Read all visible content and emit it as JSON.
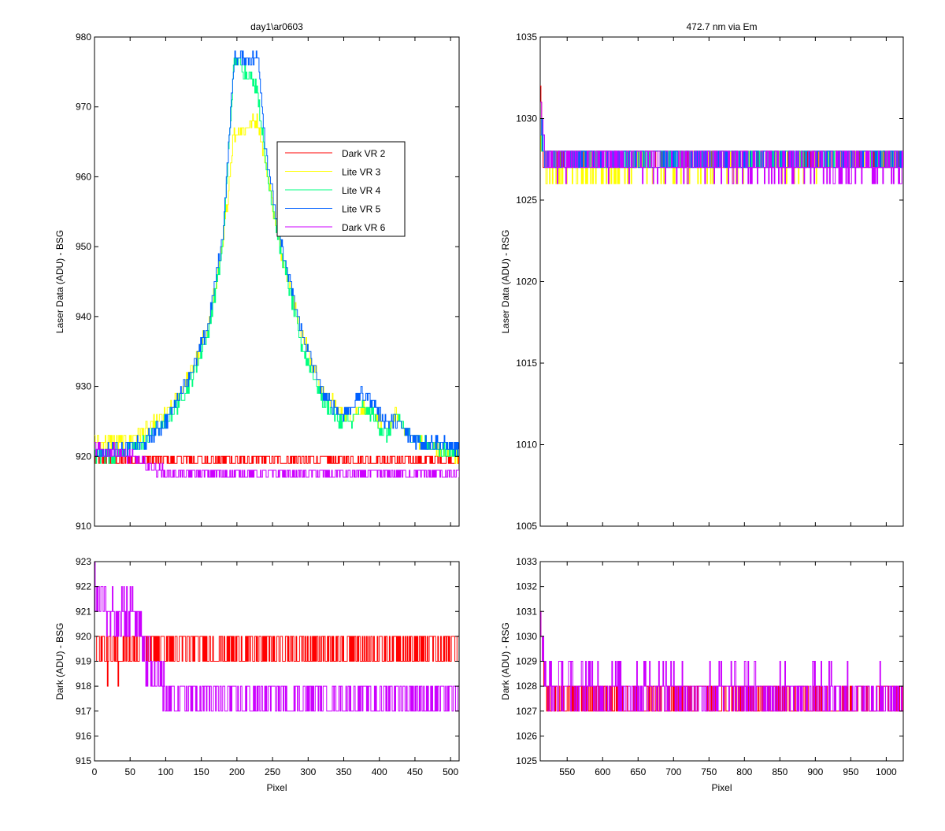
{
  "figure": {
    "left_title": "day1\\ar0603",
    "right_title": "472.7 nm via Em"
  },
  "legend": {
    "entries": [
      {
        "label": "Dark VR 2",
        "color": "#ff0000"
      },
      {
        "label": "Lite VR 3",
        "color": "#ffff00"
      },
      {
        "label": "Lite VR 4",
        "color": "#00ff80"
      },
      {
        "label": "Lite VR 5",
        "color": "#0060ff"
      },
      {
        "label": "Dark VR 6",
        "color": "#cc00ff"
      }
    ]
  },
  "chart_data": [
    {
      "id": "bsg-laser",
      "type": "line",
      "title": "day1\\ar0603",
      "xlabel": "",
      "ylabel": "Laser Data (ADU) - BSG",
      "xlim": [
        0,
        512
      ],
      "ylim": [
        910,
        980
      ],
      "xticks": [
        0,
        50,
        100,
        150,
        200,
        250,
        300,
        350,
        400,
        450,
        500
      ],
      "yticks": [
        910,
        920,
        930,
        940,
        950,
        960,
        970,
        980
      ],
      "x_tick_labels_shown": false,
      "legend": "inside, upper-middle",
      "series": [
        {
          "name": "Dark VR 2",
          "color": "#ff0000",
          "noise": 1,
          "x": [
            0,
            512
          ],
          "y": [
            919.5,
            919.5
          ]
        },
        {
          "name": "Lite VR 3",
          "color": "#ffff00",
          "noise": 1,
          "x": [
            0,
            40,
            70,
            100,
            120,
            140,
            160,
            180,
            195,
            228,
            240,
            260,
            290,
            320,
            345,
            360,
            375,
            390,
            400,
            410,
            425,
            440,
            460,
            480,
            512
          ],
          "y": [
            922,
            922,
            923.5,
            926,
            929,
            933,
            939,
            950,
            966,
            968,
            962,
            950,
            938,
            929,
            926.5,
            926,
            927,
            926,
            925,
            924,
            926,
            923,
            922,
            921,
            920
          ]
        },
        {
          "name": "Lite VR 4",
          "color": "#00ff80",
          "noise": 1,
          "x": [
            0,
            40,
            70,
            100,
            120,
            140,
            160,
            180,
            196,
            228,
            240,
            260,
            290,
            320,
            345,
            360,
            375,
            390,
            400,
            410,
            425,
            440,
            460,
            480,
            512
          ],
          "y": [
            920,
            920.5,
            922,
            925,
            928,
            932,
            938,
            950,
            977,
            973,
            962,
            950,
            936,
            928,
            925,
            925,
            927,
            926,
            924,
            923,
            926,
            923,
            922,
            921,
            920.5
          ]
        },
        {
          "name": "Lite VR 5",
          "color": "#0060ff",
          "noise": 1,
          "x": [
            0,
            40,
            70,
            100,
            120,
            140,
            160,
            180,
            196,
            230,
            240,
            260,
            290,
            320,
            345,
            360,
            375,
            390,
            400,
            410,
            425,
            440,
            460,
            480,
            512
          ],
          "y": [
            920.5,
            921,
            922,
            925,
            929,
            933,
            939,
            952,
            977,
            977,
            964,
            951,
            938,
            929,
            926,
            927,
            929,
            928,
            926,
            925,
            925,
            923,
            922,
            922,
            921
          ]
        },
        {
          "name": "Dark VR 6",
          "color": "#cc00ff",
          "noise": 1,
          "x": [
            0,
            40,
            60,
            75,
            90,
            100,
            110,
            200,
            300,
            400,
            500,
            512
          ],
          "y": [
            921,
            920.5,
            919.5,
            918.5,
            918,
            917.5,
            917.5,
            917.5,
            917.5,
            917.5,
            917.5,
            917.5
          ]
        }
      ]
    },
    {
      "id": "rsg-laser",
      "type": "line",
      "title": "472.7 nm via Em",
      "xlabel": "",
      "ylabel": "Laser Data (ADU) - RSG",
      "xlim": [
        512,
        1024
      ],
      "ylim": [
        1005,
        1035
      ],
      "xticks": [
        550,
        600,
        650,
        700,
        750,
        800,
        850,
        900,
        950,
        1000
      ],
      "yticks": [
        1005,
        1010,
        1015,
        1020,
        1025,
        1030,
        1035
      ],
      "x_tick_labels_shown": false,
      "series": [
        {
          "name": "Dark VR 2",
          "color": "#ff0000",
          "noise": 1,
          "x": [
            512,
            516,
            520,
            1024
          ],
          "y": [
            1031,
            1028,
            1027.5,
            1027.5
          ]
        },
        {
          "name": "Lite VR 3",
          "color": "#ffff00",
          "noise": 1,
          "x": [
            512,
            520,
            1024
          ],
          "y": [
            1029,
            1027,
            1027.5
          ]
        },
        {
          "name": "Lite VR 4",
          "color": "#00ff80",
          "noise": 1,
          "x": [
            512,
            520,
            1024
          ],
          "y": [
            1029,
            1027.5,
            1027.5
          ]
        },
        {
          "name": "Lite VR 5",
          "color": "#0060ff",
          "noise": 1,
          "x": [
            512,
            520,
            1024
          ],
          "y": [
            1029,
            1027.5,
            1027.5
          ]
        },
        {
          "name": "Dark VR 6",
          "color": "#cc00ff",
          "noise": 1,
          "x": [
            512,
            516,
            520,
            1024
          ],
          "y": [
            1031,
            1029,
            1027.5,
            1027
          ]
        }
      ]
    },
    {
      "id": "bsg-dark",
      "type": "line",
      "title": "",
      "xlabel": "Pixel",
      "ylabel": "Dark (ADU) - BSG",
      "xlim": [
        0,
        512
      ],
      "ylim": [
        915,
        923
      ],
      "xticks": [
        0,
        50,
        100,
        150,
        200,
        250,
        300,
        350,
        400,
        450,
        500
      ],
      "yticks": [
        915,
        916,
        917,
        918,
        919,
        920,
        921,
        922,
        923
      ],
      "x_tick_labels_shown": true,
      "series": [
        {
          "name": "Dark VR 2",
          "color": "#ff0000",
          "noise": 1,
          "x": [
            0,
            10,
            20,
            40,
            60,
            80,
            100,
            512
          ],
          "y": [
            920,
            919.5,
            919,
            919.5,
            919.5,
            919.5,
            919.5,
            919.5
          ]
        },
        {
          "name": "Dark VR 6",
          "color": "#cc00ff",
          "noise": 1,
          "x": [
            0,
            10,
            20,
            40,
            55,
            70,
            80,
            90,
            100,
            110,
            200,
            512
          ],
          "y": [
            922,
            921.5,
            921,
            921,
            921,
            919.5,
            918.5,
            918,
            917.5,
            917.5,
            917.5,
            917.5
          ]
        }
      ]
    },
    {
      "id": "rsg-dark",
      "type": "line",
      "title": "",
      "xlabel": "Pixel",
      "ylabel": "Dark (ADU) - RSG",
      "xlim": [
        512,
        1024
      ],
      "ylim": [
        1025,
        1033
      ],
      "xticks": [
        550,
        600,
        650,
        700,
        750,
        800,
        850,
        900,
        950,
        1000
      ],
      "yticks": [
        1025,
        1026,
        1027,
        1028,
        1029,
        1030,
        1031,
        1032,
        1033
      ],
      "x_tick_labels_shown": true,
      "series": [
        {
          "name": "Dark VR 2",
          "color": "#ff0000",
          "noise": 1,
          "x": [
            512,
            516,
            520,
            1024
          ],
          "y": [
            1031,
            1028,
            1027.5,
            1027.5
          ]
        },
        {
          "name": "Dark VR 6",
          "color": "#cc00ff",
          "noise": 1,
          "x": [
            512,
            516,
            520,
            1024
          ],
          "y": [
            1031,
            1029,
            1028,
            1027.5
          ]
        }
      ]
    }
  ]
}
